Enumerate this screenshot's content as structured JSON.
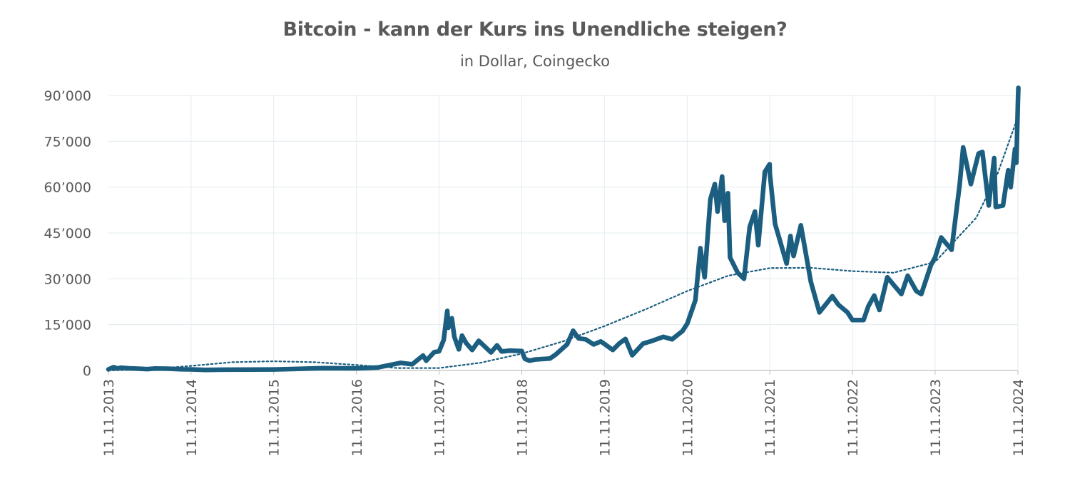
{
  "chart_data": {
    "type": "line",
    "title": "Bitcoin - kann der Kurs ins Unendliche steigen?",
    "subtitle": "in Dollar, Coingecko",
    "xlabel": "",
    "ylabel": "",
    "ylim": [
      0,
      90000
    ],
    "y_ticks": [
      0,
      15000,
      30000,
      45000,
      60000,
      75000,
      90000
    ],
    "y_tick_labels": [
      "0",
      "15’000",
      "30’000",
      "45’000",
      "60’000",
      "75’000",
      "90’000"
    ],
    "x_ticks": [
      "2013-11-11",
      "2014-11-11",
      "2015-11-11",
      "2016-11-11",
      "2017-11-11",
      "2018-11-11",
      "2019-11-11",
      "2020-11-11",
      "2021-11-11",
      "2022-11-11",
      "2023-11-11",
      "2024-11-11"
    ],
    "x_tick_labels": [
      "11.11.2013",
      "11.11.2014",
      "11.11.2015",
      "11.11.2016",
      "11.11.2017",
      "11.11.2018",
      "11.11.2019",
      "11.11.2020",
      "11.11.2021",
      "11.11.2022",
      "11.11.2023",
      "11.11.2024"
    ],
    "grid": true,
    "colors": {
      "price": "#1b5e80",
      "trend": "#1b5e80",
      "text": "#595959",
      "grid": "#e3ebef"
    },
    "series": [
      {
        "style": "solid-thick",
        "points": [
          [
            "2013-11-11",
            340
          ],
          [
            "2013-12-04",
            1100
          ],
          [
            "2013-12-20",
            650
          ],
          [
            "2014-01-06",
            900
          ],
          [
            "2014-02-10",
            700
          ],
          [
            "2014-03-15",
            600
          ],
          [
            "2014-05-01",
            450
          ],
          [
            "2014-06-05",
            650
          ],
          [
            "2014-08-01",
            580
          ],
          [
            "2014-10-01",
            380
          ],
          [
            "2014-11-11",
            360
          ],
          [
            "2015-01-14",
            180
          ],
          [
            "2015-04-01",
            250
          ],
          [
            "2015-08-01",
            280
          ],
          [
            "2015-11-11",
            330
          ],
          [
            "2016-01-01",
            430
          ],
          [
            "2016-06-17",
            750
          ],
          [
            "2016-11-11",
            710
          ],
          [
            "2017-02-15",
            1000
          ],
          [
            "2017-05-25",
            2500
          ],
          [
            "2017-07-15",
            2000
          ],
          [
            "2017-09-01",
            4900
          ],
          [
            "2017-09-15",
            3200
          ],
          [
            "2017-10-20",
            6000
          ],
          [
            "2017-11-11",
            6300
          ],
          [
            "2017-12-01",
            10000
          ],
          [
            "2017-12-17",
            19500
          ],
          [
            "2017-12-22",
            14000
          ],
          [
            "2018-01-06",
            17100
          ],
          [
            "2018-01-17",
            11000
          ],
          [
            "2018-02-06",
            6900
          ],
          [
            "2018-02-20",
            11400
          ],
          [
            "2018-03-10",
            9000
          ],
          [
            "2018-04-06",
            6700
          ],
          [
            "2018-05-05",
            9700
          ],
          [
            "2018-06-28",
            5900
          ],
          [
            "2018-07-25",
            8200
          ],
          [
            "2018-08-14",
            6200
          ],
          [
            "2018-09-20",
            6500
          ],
          [
            "2018-11-11",
            6350
          ],
          [
            "2018-11-25",
            3800
          ],
          [
            "2018-12-15",
            3200
          ],
          [
            "2019-01-10",
            3600
          ],
          [
            "2019-03-15",
            3900
          ],
          [
            "2019-04-10",
            5200
          ],
          [
            "2019-05-30",
            8500
          ],
          [
            "2019-06-26",
            13000
          ],
          [
            "2019-07-20",
            10500
          ],
          [
            "2019-08-20",
            10200
          ],
          [
            "2019-09-25",
            8500
          ],
          [
            "2019-10-26",
            9500
          ],
          [
            "2019-11-11",
            8700
          ],
          [
            "2019-12-18",
            6700
          ],
          [
            "2020-01-15",
            8800
          ],
          [
            "2020-02-12",
            10300
          ],
          [
            "2020-03-13",
            5000
          ],
          [
            "2020-04-30",
            8800
          ],
          [
            "2020-06-01",
            9500
          ],
          [
            "2020-07-28",
            11000
          ],
          [
            "2020-09-05",
            10200
          ],
          [
            "2020-10-21",
            12900
          ],
          [
            "2020-11-11",
            15300
          ],
          [
            "2020-12-17",
            23000
          ],
          [
            "2021-01-08",
            40000
          ],
          [
            "2021-01-27",
            30500
          ],
          [
            "2021-02-21",
            56000
          ],
          [
            "2021-03-13",
            61000
          ],
          [
            "2021-03-25",
            52000
          ],
          [
            "2021-04-14",
            63500
          ],
          [
            "2021-04-25",
            49000
          ],
          [
            "2021-05-10",
            58000
          ],
          [
            "2021-05-19",
            37000
          ],
          [
            "2021-06-22",
            32000
          ],
          [
            "2021-07-20",
            30000
          ],
          [
            "2021-08-14",
            47000
          ],
          [
            "2021-09-06",
            52000
          ],
          [
            "2021-09-21",
            41000
          ],
          [
            "2021-10-20",
            65000
          ],
          [
            "2021-11-10",
            67500
          ],
          [
            "2021-11-11",
            64500
          ],
          [
            "2021-12-04",
            48000
          ],
          [
            "2022-01-24",
            35000
          ],
          [
            "2022-02-10",
            44000
          ],
          [
            "2022-02-24",
            37500
          ],
          [
            "2022-03-28",
            47500
          ],
          [
            "2022-05-11",
            29000
          ],
          [
            "2022-06-18",
            19000
          ],
          [
            "2022-08-14",
            24300
          ],
          [
            "2022-09-10",
            21500
          ],
          [
            "2022-10-20",
            19000
          ],
          [
            "2022-11-11",
            16500
          ],
          [
            "2022-12-30",
            16500
          ],
          [
            "2023-01-20",
            21000
          ],
          [
            "2023-02-15",
            24500
          ],
          [
            "2023-03-10",
            19800
          ],
          [
            "2023-04-14",
            30500
          ],
          [
            "2023-06-15",
            25000
          ],
          [
            "2023-07-13",
            31000
          ],
          [
            "2023-08-20",
            26000
          ],
          [
            "2023-09-11",
            25000
          ],
          [
            "2023-10-24",
            34500
          ],
          [
            "2023-11-11",
            37000
          ],
          [
            "2023-12-08",
            43500
          ],
          [
            "2024-01-23",
            39500
          ],
          [
            "2024-02-28",
            61000
          ],
          [
            "2024-03-14",
            73000
          ],
          [
            "2024-04-17",
            61000
          ],
          [
            "2024-05-21",
            71000
          ],
          [
            "2024-06-07",
            71500
          ],
          [
            "2024-07-05",
            54000
          ],
          [
            "2024-07-29",
            69500
          ],
          [
            "2024-08-05",
            53500
          ],
          [
            "2024-09-06",
            54000
          ],
          [
            "2024-09-29",
            65500
          ],
          [
            "2024-10-10",
            60000
          ],
          [
            "2024-10-29",
            72500
          ],
          [
            "2024-11-04",
            68000
          ],
          [
            "2024-11-11",
            88000
          ],
          [
            "2024-11-13",
            92500
          ]
        ]
      },
      {
        "style": "dotted-trendline",
        "points": [
          [
            "2013-11-11",
            0
          ],
          [
            "2014-05-11",
            400
          ],
          [
            "2014-11-11",
            1500
          ],
          [
            "2015-05-11",
            2700
          ],
          [
            "2015-11-11",
            3000
          ],
          [
            "2016-05-11",
            2700
          ],
          [
            "2016-11-11",
            1800
          ],
          [
            "2017-05-11",
            800
          ],
          [
            "2017-11-11",
            800
          ],
          [
            "2018-05-11",
            2500
          ],
          [
            "2018-11-11",
            5500
          ],
          [
            "2019-05-11",
            9500
          ],
          [
            "2019-11-11",
            14500
          ],
          [
            "2020-05-11",
            20000
          ],
          [
            "2020-11-11",
            26000
          ],
          [
            "2021-05-11",
            31000
          ],
          [
            "2021-11-11",
            33500
          ],
          [
            "2022-05-11",
            33600
          ],
          [
            "2022-11-11",
            32500
          ],
          [
            "2023-05-11",
            32000
          ],
          [
            "2023-11-11",
            35500
          ],
          [
            "2024-05-11",
            50000
          ],
          [
            "2024-08-11",
            64000
          ],
          [
            "2024-11-11",
            83000
          ]
        ]
      }
    ]
  }
}
